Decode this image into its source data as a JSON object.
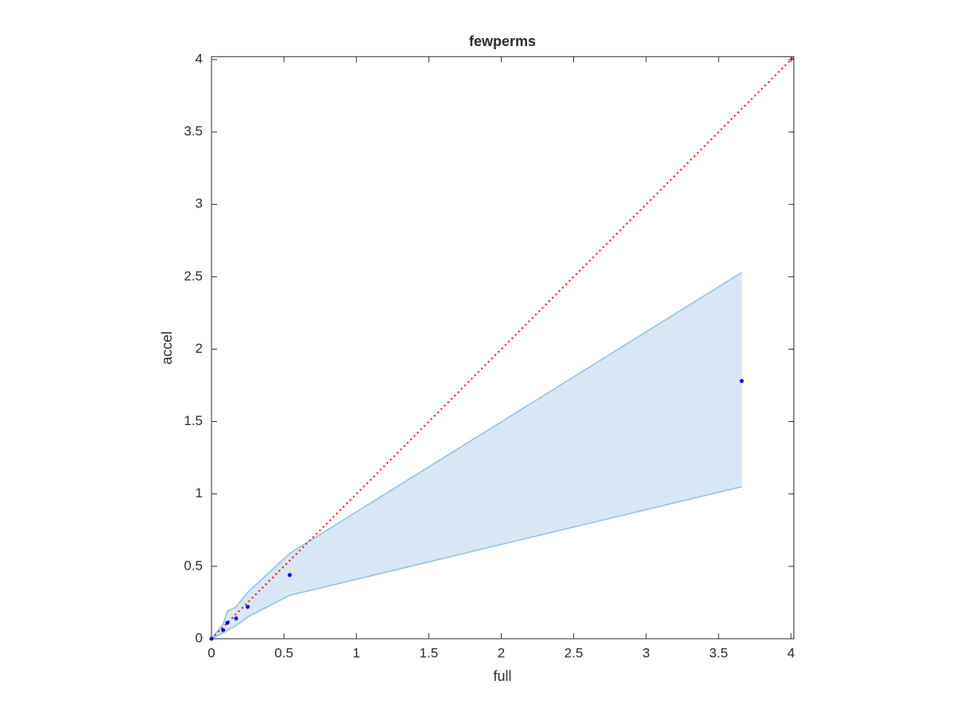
{
  "chart_data": {
    "type": "scatter",
    "title": "fewperms",
    "x_label": "full",
    "y_label": "accel",
    "xlim": [
      0,
      4.02
    ],
    "ylim": [
      0,
      4.02
    ],
    "xticks": [
      0,
      0.5,
      1,
      1.5,
      2,
      2.5,
      3,
      3.5,
      4
    ],
    "yticks": [
      0,
      0.5,
      1,
      1.5,
      2,
      2.5,
      3,
      3.5,
      4
    ],
    "grid": false,
    "band": {
      "color": "#d9e7f4",
      "edge_color": "#8dc0e0",
      "x": [
        0,
        0.08,
        0.11,
        0.17,
        0.25,
        0.54,
        3.66
      ],
      "lower": [
        0,
        0.04,
        0.06,
        0.09,
        0.15,
        0.3,
        1.05
      ],
      "upper": [
        0,
        0.1,
        0.19,
        0.22,
        0.32,
        0.59,
        2.53
      ]
    },
    "reference_line": {
      "color": "#ff0000",
      "style": "dotted",
      "x": [
        0,
        4.02
      ],
      "y": [
        0,
        4.02
      ]
    },
    "points": {
      "color": "#0000ff",
      "x": [
        0,
        0.08,
        0.11,
        0.17,
        0.25,
        0.54,
        3.66
      ],
      "y": [
        0,
        0.06,
        0.11,
        0.14,
        0.22,
        0.44,
        1.78
      ]
    }
  }
}
